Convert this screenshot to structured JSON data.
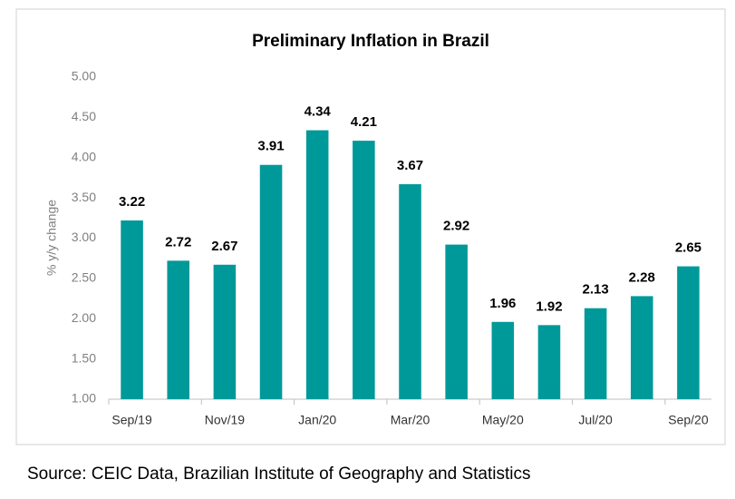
{
  "chart_data": {
    "type": "bar",
    "title": "Preliminary Inflation in Brazil",
    "y_label": "% y/y change",
    "categories": [
      "Sep/19",
      null,
      "Nov/19",
      null,
      "Jan/20",
      null,
      "Mar/20",
      null,
      "May/20",
      null,
      "Jul/20",
      null,
      "Sep/20"
    ],
    "values": [
      3.22,
      2.72,
      2.67,
      3.91,
      4.34,
      4.21,
      3.67,
      2.92,
      1.96,
      1.92,
      2.13,
      2.28,
      2.65
    ],
    "color": "#009999",
    "ylim": [
      1,
      5
    ],
    "yticks": [
      {
        "value": 1,
        "label": "1.00"
      },
      {
        "value": 1.5,
        "label": "1.50"
      },
      {
        "value": 2,
        "label": "2.00"
      },
      {
        "value": 2.5,
        "label": "2.50"
      },
      {
        "value": 3,
        "label": "3.00"
      },
      {
        "value": 3.5,
        "label": "3.50"
      },
      {
        "value": 4,
        "label": "4.00"
      },
      {
        "value": 4.5,
        "label": "4.50"
      },
      {
        "value": 5,
        "label": "5.00"
      }
    ],
    "grid": false,
    "source": "Source: CEIC Data, Brazilian Institute of Geography and Statistics"
  }
}
